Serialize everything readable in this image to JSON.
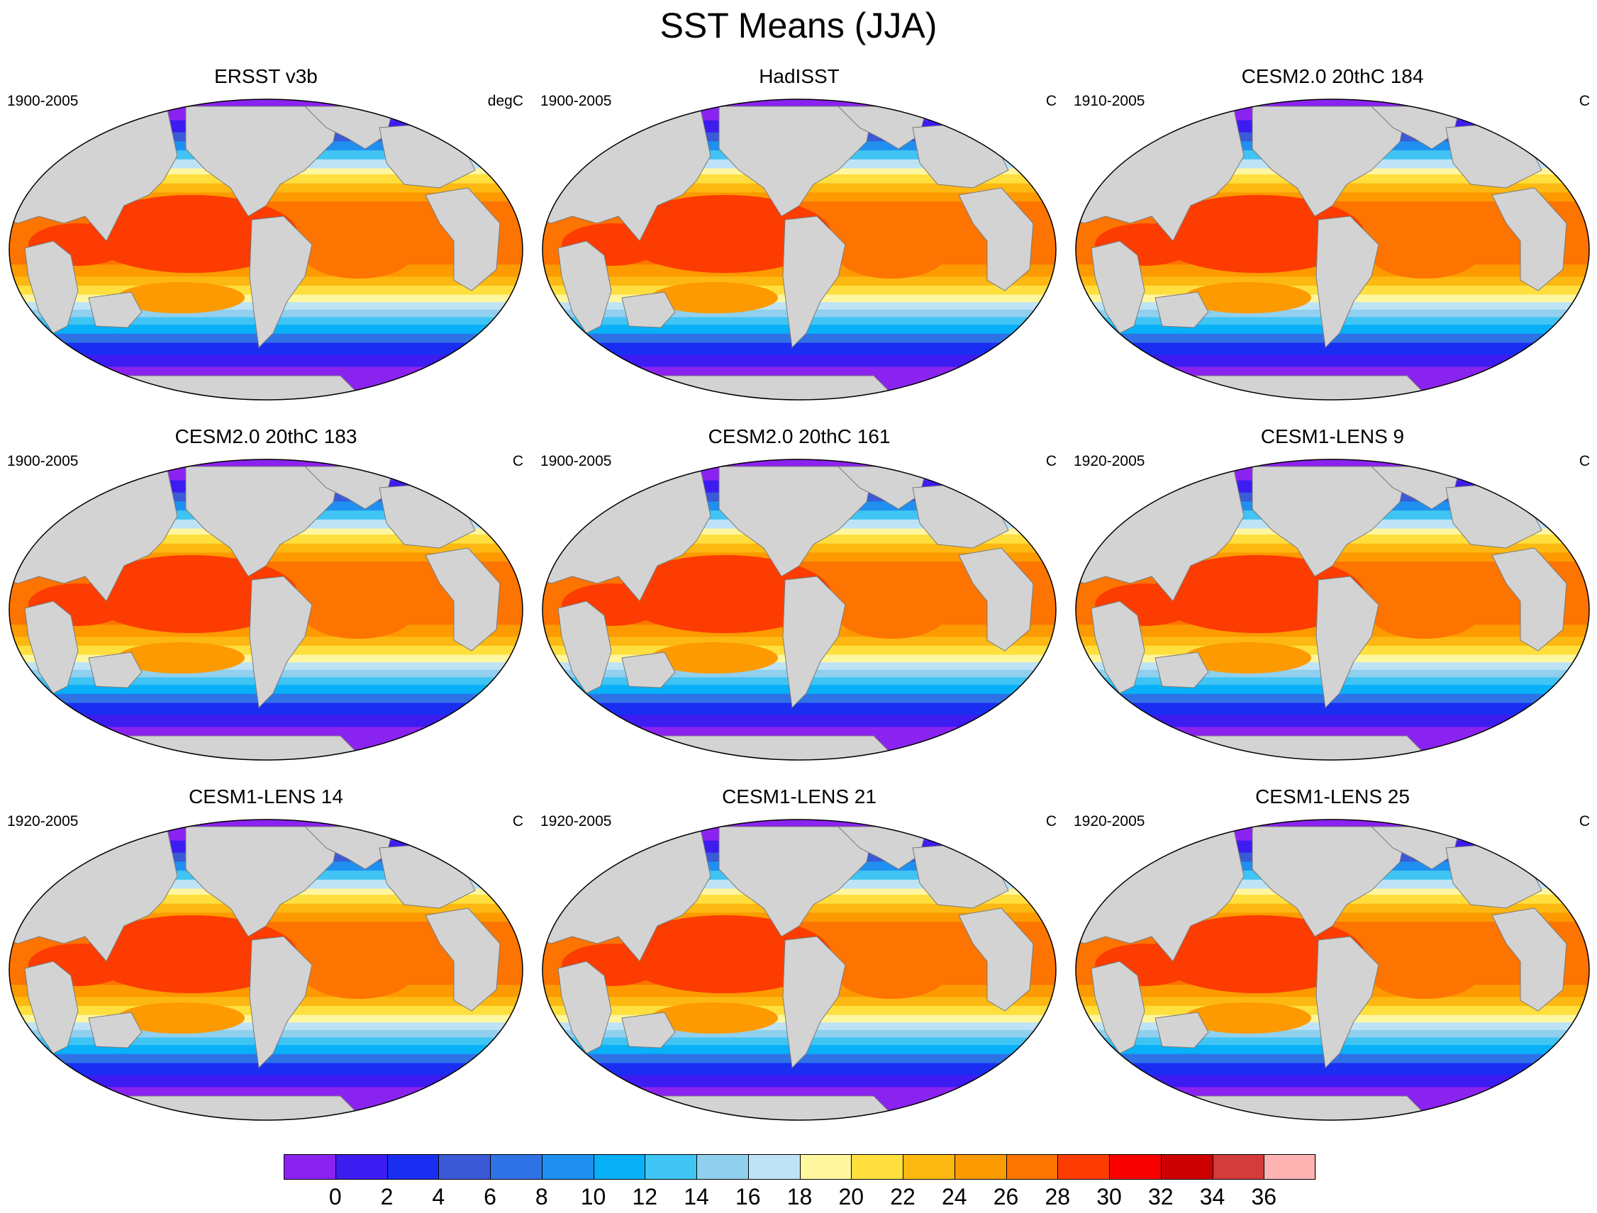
{
  "figure": {
    "title": "SST Means (JJA)",
    "panels": [
      {
        "name": "ERSST v3b",
        "period": "1900-2005",
        "units": "degC"
      },
      {
        "name": "HadISST",
        "period": "1900-2005",
        "units": "C"
      },
      {
        "name": "CESM2.0 20thC 184",
        "period": "1910-2005",
        "units": "C"
      },
      {
        "name": "CESM2.0 20thC 183",
        "period": "1900-2005",
        "units": "C"
      },
      {
        "name": "CESM2.0 20thC 161",
        "period": "1900-2005",
        "units": "C"
      },
      {
        "name": "CESM1-LENS 9",
        "period": "1920-2005",
        "units": "C"
      },
      {
        "name": "CESM1-LENS 14",
        "period": "1920-2005",
        "units": "C"
      },
      {
        "name": "CESM1-LENS 21",
        "period": "1920-2005",
        "units": "C"
      },
      {
        "name": "CESM1-LENS 25",
        "period": "1920-2005",
        "units": "C"
      }
    ],
    "land_color": "#d3d3d3",
    "colorbar": {
      "labels": [
        "0",
        "2",
        "4",
        "6",
        "8",
        "10",
        "12",
        "14",
        "16",
        "18",
        "20",
        "22",
        "24",
        "26",
        "28",
        "30",
        "32",
        "34",
        "36"
      ],
      "colors": [
        "#8b23f0",
        "#3c1cf0",
        "#1a2ef2",
        "#3a5ad8",
        "#2f72e6",
        "#1f90f0",
        "#08b0f8",
        "#40c4f4",
        "#90d0ee",
        "#bee3f6",
        "#fff6a0",
        "#fedf3e",
        "#fdb812",
        "#fd9a00",
        "#fd7400",
        "#fc3c00",
        "#f80000",
        "#cc0000",
        "#d43c3c",
        "#ffb4b4"
      ]
    }
  }
}
